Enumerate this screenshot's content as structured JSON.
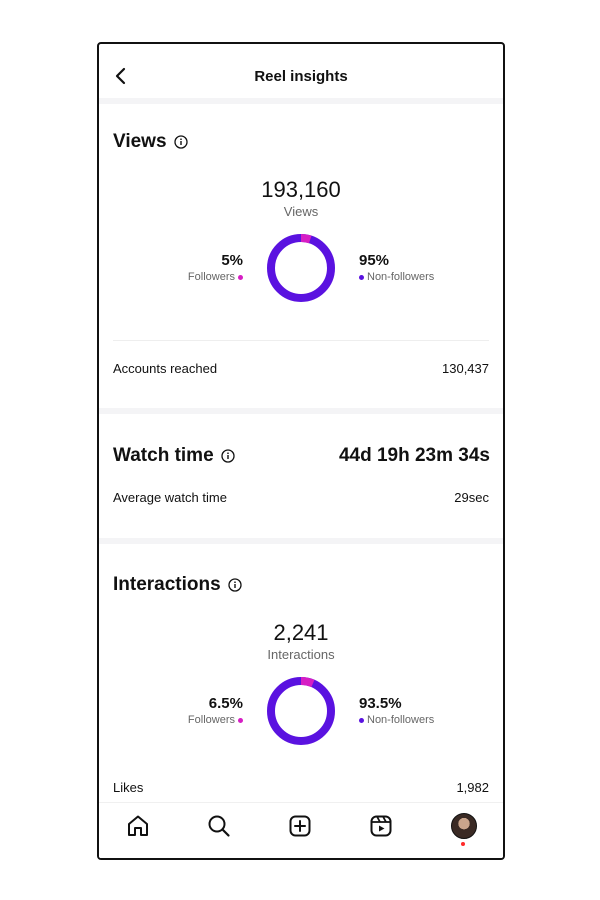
{
  "header": {
    "title": "Reel insights"
  },
  "views": {
    "title": "Views",
    "total": "193,160",
    "total_label": "Views",
    "followers_pct": "5%",
    "followers_label": "Followers",
    "nonfollowers_pct": "95%",
    "nonfollowers_label": "Non-followers",
    "followers_fraction": 0.05,
    "accounts_reached_label": "Accounts reached",
    "accounts_reached_value": "130,437"
  },
  "watch_time": {
    "title": "Watch time",
    "total": "44d 19h 23m 34s",
    "average_label": "Average watch time",
    "average_value": "29sec"
  },
  "interactions": {
    "title": "Interactions",
    "total": "2,241",
    "total_label": "Interactions",
    "followers_pct": "6.5%",
    "followers_label": "Followers",
    "nonfollowers_pct": "93.5%",
    "nonfollowers_label": "Non-followers",
    "followers_fraction": 0.065,
    "likes_label": "Likes",
    "likes_value": "1,982"
  },
  "colors": {
    "followers": "#d61ec4",
    "non_followers": "#5a12e0"
  },
  "nav": {
    "icons": [
      "home-icon",
      "search-icon",
      "create-icon",
      "reels-icon",
      "profile-avatar"
    ]
  }
}
